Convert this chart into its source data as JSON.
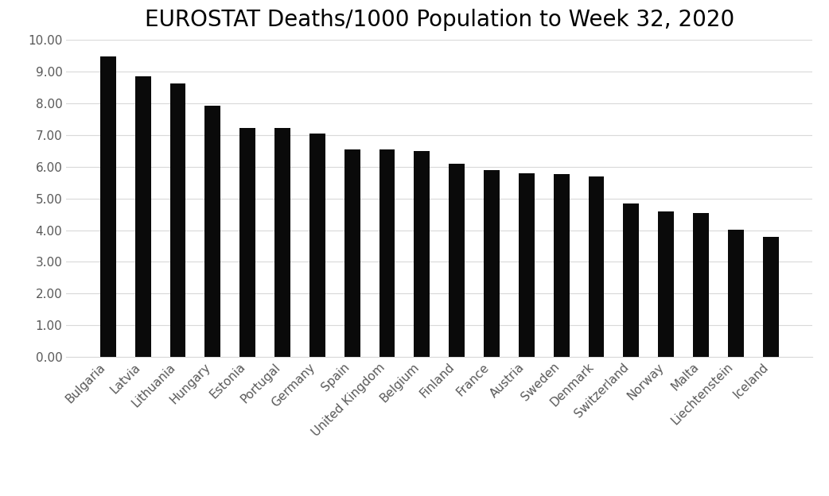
{
  "title": "EUROSTAT Deaths/1000 Population to Week 32, 2020",
  "categories": [
    "Bulgaria",
    "Latvia",
    "Lithuania",
    "Hungary",
    "Estonia",
    "Portugal",
    "Germany",
    "Spain",
    "United Kingdom",
    "Belgium",
    "Finland",
    "France",
    "Austria",
    "Sweden",
    "Denmark",
    "Switzerland",
    "Norway",
    "Malta",
    "Liechtenstein",
    "Iceland"
  ],
  "values": [
    9.47,
    8.85,
    8.62,
    7.93,
    7.22,
    7.21,
    7.04,
    6.55,
    6.54,
    6.5,
    6.08,
    5.9,
    5.8,
    5.76,
    5.68,
    4.85,
    4.58,
    4.55,
    4.02,
    3.8
  ],
  "bar_color": "#0a0a0a",
  "background_color": "#ffffff",
  "ylim": [
    0,
    10.0
  ],
  "yticks": [
    0.0,
    1.0,
    2.0,
    3.0,
    4.0,
    5.0,
    6.0,
    7.0,
    8.0,
    9.0,
    10.0
  ],
  "title_fontsize": 20,
  "tick_fontsize": 11,
  "label_color": "#595959",
  "grid_color": "#d9d9d9",
  "bar_width": 0.45
}
